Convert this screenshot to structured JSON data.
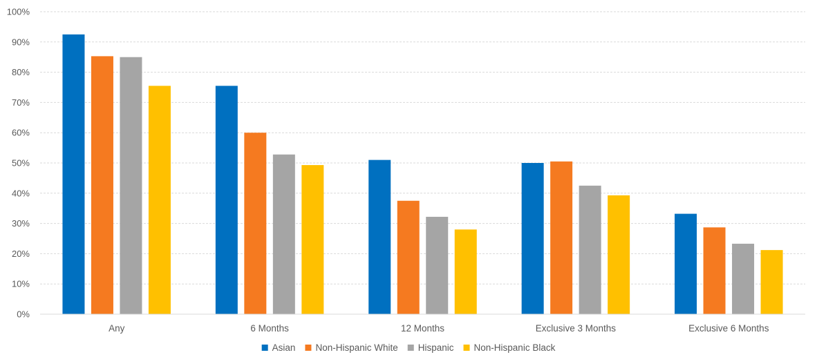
{
  "chart_data": {
    "type": "bar",
    "categories": [
      "Any",
      "6 Months",
      "12 Months",
      "Exclusive 3 Months",
      "Exclusive 6 Months"
    ],
    "series": [
      {
        "name": "Asian",
        "color": "#0070C0",
        "values": [
          92.5,
          75.5,
          51.0,
          50.0,
          33.2
        ]
      },
      {
        "name": "Non-Hispanic White",
        "color": "#F57A20",
        "values": [
          85.3,
          60.0,
          37.5,
          50.5,
          28.7
        ]
      },
      {
        "name": "Hispanic",
        "color": "#A5A5A5",
        "values": [
          85.0,
          52.8,
          32.2,
          42.5,
          23.3
        ]
      },
      {
        "name": "Non-Hispanic Black",
        "color": "#FFC000",
        "values": [
          75.5,
          49.3,
          28.0,
          39.3,
          21.2
        ]
      }
    ],
    "ylim": [
      0,
      100
    ],
    "yticks": [
      "0%",
      "10%",
      "20%",
      "30%",
      "40%",
      "50%",
      "60%",
      "70%",
      "80%",
      "90%",
      "100%"
    ],
    "grid": true,
    "legend": "bottom"
  }
}
